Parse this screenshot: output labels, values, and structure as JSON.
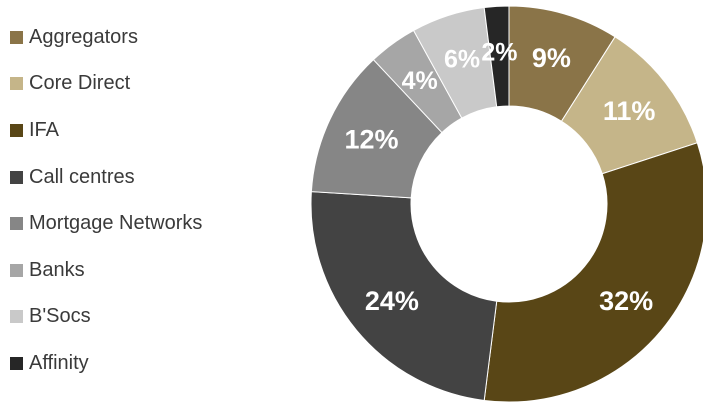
{
  "chart_data": {
    "type": "pie",
    "variant": "donut",
    "title": "",
    "legend_position": "left",
    "slices": [
      {
        "label": "Aggregators",
        "value": 9,
        "display": "9%",
        "color": "#8a7448"
      },
      {
        "label": "Core Direct",
        "value": 11,
        "display": "11%",
        "color": "#c5b589"
      },
      {
        "label": "IFA",
        "value": 32,
        "display": "32%",
        "color": "#594616"
      },
      {
        "label": "Call centres",
        "value": 24,
        "display": "24%",
        "color": "#434343"
      },
      {
        "label": "Mortgage Networks",
        "value": 12,
        "display": "12%",
        "color": "#868686"
      },
      {
        "label": "Banks",
        "value": 4,
        "display": "4%",
        "color": "#a6a6a6"
      },
      {
        "label": "B'Socs",
        "value": 6,
        "display": "6%",
        "color": "#c9c9c9"
      },
      {
        "label": "Affinity",
        "value": 2,
        "display": "2%",
        "color": "#262626"
      }
    ]
  }
}
